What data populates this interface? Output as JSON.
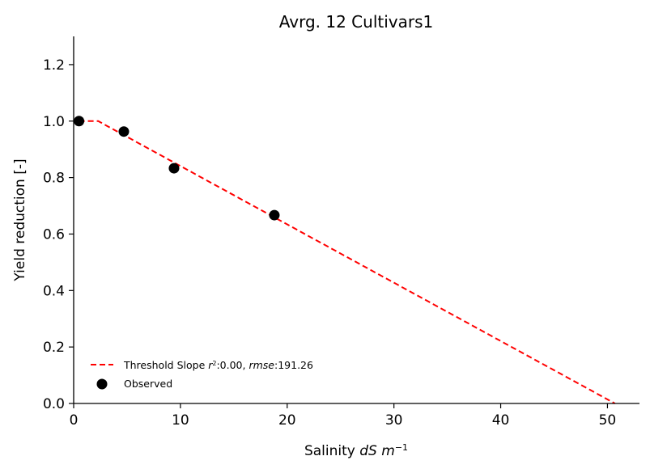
{
  "chart_data": {
    "type": "scatter",
    "title": "Avrg. 12 Cultivars1",
    "xlabel": {
      "prefix": "Salinity ",
      "var": "dS m",
      "sup": "−1"
    },
    "ylabel": "Yield reduction [-]",
    "xlim": [
      0,
      53
    ],
    "ylim": [
      0,
      1.3
    ],
    "xticks": [
      0,
      10,
      20,
      30,
      40,
      50
    ],
    "yticks": [
      0.0,
      0.2,
      0.4,
      0.6,
      0.8,
      1.0,
      1.2
    ],
    "xtick_labels": [
      "0",
      "10",
      "20",
      "30",
      "40",
      "50"
    ],
    "ytick_labels": [
      "0.0",
      "0.2",
      "0.4",
      "0.6",
      "0.8",
      "1.0",
      "1.2"
    ],
    "grid": false,
    "legend_position": "lower-left",
    "series": [
      {
        "name": "Threshold Slope",
        "kind": "line",
        "style": "dashed",
        "color": "#ff0000",
        "x": [
          0.5,
          2.3,
          50.7
        ],
        "y": [
          1.0,
          1.0,
          0.0
        ]
      },
      {
        "name": "Observed",
        "kind": "scatter",
        "color": "#000000",
        "x": [
          0.5,
          4.7,
          9.4,
          18.8
        ],
        "y": [
          1.0,
          0.963,
          0.833,
          0.667
        ]
      }
    ],
    "legend": {
      "line_entry": {
        "prefix": "Threshold Slope ",
        "r_sym": "r",
        "r_sup": "2",
        "r_val": ":0.00, ",
        "rmse_sym": "rmse",
        "rmse_val": ":191.26"
      },
      "scatter_entry": "Observed"
    }
  }
}
